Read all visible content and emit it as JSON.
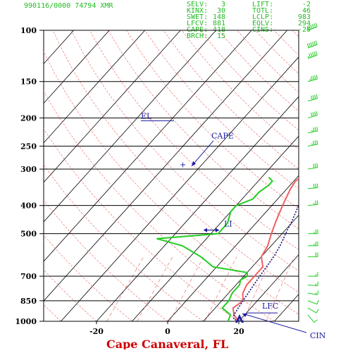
{
  "header": {
    "station_line": "990116/0000 74794  XMR",
    "indices": [
      {
        "left": "SELV:",
        "left_val": "3",
        "right": "LIFT:",
        "right_val": "-2"
      },
      {
        "left": "KINX:",
        "left_val": "30",
        "right": "TOTL:",
        "right_val": "46"
      },
      {
        "left": "SWET:",
        "left_val": "148",
        "right": "LCLP:",
        "right_val": "983"
      },
      {
        "left": "LFCV:",
        "left_val": "881",
        "right": "EQLV:",
        "right_val": "294"
      },
      {
        "left": "CAPE:",
        "left_val": "418",
        "right": "CINS:",
        "right_val": "-20"
      },
      {
        "left": "BRCH:",
        "left_val": "15",
        "right": "",
        "right_val": ""
      }
    ]
  },
  "chart_data": {
    "type": "line",
    "title": "Cape Canaveral, FL",
    "xlabel": "",
    "ylabel": "",
    "pressure_levels": [
      100,
      150,
      200,
      250,
      300,
      400,
      500,
      700,
      850,
      1000
    ],
    "pressure_labels": [
      "100",
      "150",
      "200",
      "250",
      "300",
      "400",
      "500",
      "700",
      "850",
      "1000"
    ],
    "x_ticks": [
      -20,
      0,
      20
    ],
    "x_tick_labels": [
      "-20",
      "0",
      "20"
    ],
    "xlim": [
      -35,
      41
    ],
    "ylim": [
      1000,
      100
    ],
    "series": [
      {
        "color": "#f06060",
        "points": [
          {
            "p": 1000,
            "t": 20
          },
          {
            "p": 950,
            "t": 17
          },
          {
            "p": 900,
            "t": 15
          },
          {
            "p": 850,
            "t": 16
          },
          {
            "p": 800,
            "t": 14
          },
          {
            "p": 750,
            "t": 13
          },
          {
            "p": 700,
            "t": 13
          },
          {
            "p": 650,
            "t": 13
          },
          {
            "p": 600,
            "t": 10
          },
          {
            "p": 550,
            "t": 9
          },
          {
            "p": 500,
            "t": 7
          },
          {
            "p": 450,
            "t": 5
          },
          {
            "p": 400,
            "t": 3
          },
          {
            "p": 350,
            "t": 1
          },
          {
            "p": 330,
            "t": 0.5
          },
          {
            "p": 300,
            "t": 1.5
          },
          {
            "p": 280,
            "t": 1.5
          },
          {
            "p": 250,
            "t": 2
          },
          {
            "p": 225,
            "t": 3
          },
          {
            "p": 200,
            "t": 3
          },
          {
            "p": 175,
            "t": 3
          },
          {
            "p": 150,
            "t": 3
          },
          {
            "p": 125,
            "t": 4
          },
          {
            "p": 110,
            "t": 6.5
          },
          {
            "p": 100,
            "t": 8
          }
        ]
      },
      {
        "color": "#22cc22",
        "points": [
          {
            "p": 1000,
            "t": 17
          },
          {
            "p": 950,
            "t": 16
          },
          {
            "p": 900,
            "t": 12
          },
          {
            "p": 850,
            "t": 12
          },
          {
            "p": 800,
            "t": 11
          },
          {
            "p": 750,
            "t": 11
          },
          {
            "p": 720,
            "t": 10
          },
          {
            "p": 700,
            "t": 11
          },
          {
            "p": 680,
            "t": 10
          },
          {
            "p": 650,
            "t": -1
          },
          {
            "p": 600,
            "t": -7
          },
          {
            "p": 550,
            "t": -15
          },
          {
            "p": 520,
            "t": -24
          },
          {
            "p": 510,
            "t": -16
          },
          {
            "p": 500,
            "t": -8
          },
          {
            "p": 460,
            "t": -8
          },
          {
            "p": 420,
            "t": -10
          },
          {
            "p": 400,
            "t": -10
          },
          {
            "p": 380,
            "t": -7
          },
          {
            "p": 360,
            "t": -7
          },
          {
            "p": 340,
            "t": -6
          },
          {
            "p": 330,
            "t": -6
          },
          {
            "p": 320,
            "t": -8
          }
        ]
      },
      {
        "color": "#101080",
        "points": [
          {
            "p": 1000,
            "t": 20
          },
          {
            "p": 983,
            "t": 18
          },
          {
            "p": 950,
            "t": 17
          },
          {
            "p": 900,
            "t": 16.5
          },
          {
            "p": 850,
            "t": 16
          },
          {
            "p": 800,
            "t": 15.5
          },
          {
            "p": 750,
            "t": 15
          },
          {
            "p": 700,
            "t": 14.5
          },
          {
            "p": 650,
            "t": 14
          },
          {
            "p": 600,
            "t": 13.5
          },
          {
            "p": 550,
            "t": 12.5
          },
          {
            "p": 500,
            "t": 11
          },
          {
            "p": 450,
            "t": 9.5
          },
          {
            "p": 400,
            "t": 7.5
          },
          {
            "p": 350,
            "t": 5
          },
          {
            "p": 300,
            "t": 2
          },
          {
            "p": 270,
            "t": 0
          }
        ]
      }
    ],
    "annotations": [
      {
        "label": "EL",
        "p": 260
      },
      {
        "label": "CAPE",
        "p": 280
      },
      {
        "label": "LI",
        "p": 470
      },
      {
        "label": "LFC",
        "p": 880
      },
      {
        "label": "CIN",
        "p": 1000
      }
    ],
    "wind_barbs": [
      {
        "p": 100,
        "dir": 250,
        "kt": 60
      },
      {
        "p": 115,
        "dir": 250,
        "kt": 60
      },
      {
        "p": 125,
        "dir": 250,
        "kt": 55
      },
      {
        "p": 150,
        "dir": 255,
        "kt": 45
      },
      {
        "p": 175,
        "dir": 255,
        "kt": 40
      },
      {
        "p": 200,
        "dir": 255,
        "kt": 40
      },
      {
        "p": 225,
        "dir": 260,
        "kt": 35
      },
      {
        "p": 250,
        "dir": 260,
        "kt": 35
      },
      {
        "p": 300,
        "dir": 260,
        "kt": 30
      },
      {
        "p": 350,
        "dir": 265,
        "kt": 30
      },
      {
        "p": 400,
        "dir": 265,
        "kt": 25
      },
      {
        "p": 500,
        "dir": 270,
        "kt": 25
      },
      {
        "p": 550,
        "dir": 270,
        "kt": 25
      },
      {
        "p": 600,
        "dir": 270,
        "kt": 20
      },
      {
        "p": 700,
        "dir": 270,
        "kt": 15
      },
      {
        "p": 750,
        "dir": 275,
        "kt": 15
      },
      {
        "p": 800,
        "dir": 280,
        "kt": 15
      },
      {
        "p": 850,
        "dir": 290,
        "kt": 10
      },
      {
        "p": 900,
        "dir": 300,
        "kt": 10
      },
      {
        "p": 950,
        "dir": 320,
        "kt": 10
      }
    ]
  }
}
